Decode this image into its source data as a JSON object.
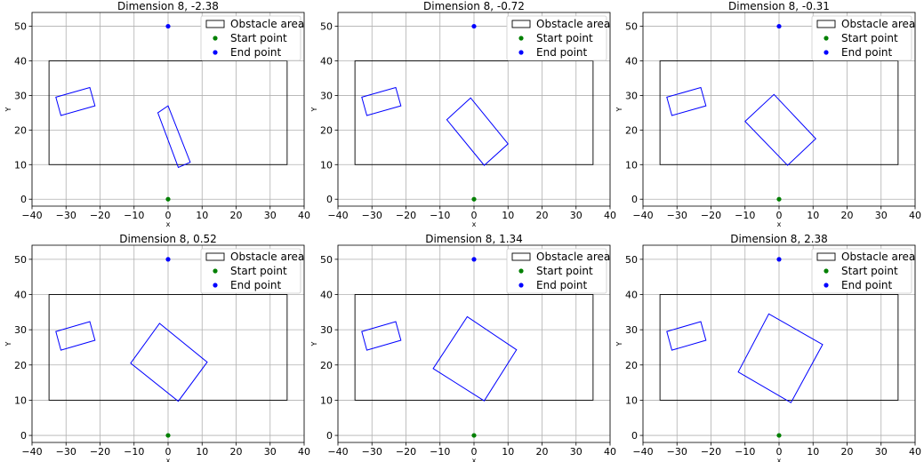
{
  "chart_data": [
    {
      "type": "scatter",
      "title": "Dimension 8, -2.38",
      "xlabel": "x",
      "ylabel": "Y",
      "xlim": [
        -40,
        40
      ],
      "ylim": [
        -2,
        54
      ],
      "xticks": [
        -40,
        -30,
        -20,
        -10,
        0,
        10,
        20,
        30,
        40
      ],
      "yticks": [
        0,
        10,
        20,
        30,
        40,
        50
      ],
      "grid": true,
      "legend": {
        "position": "top-right",
        "entries": [
          "Obstacle area",
          "Start point",
          "End point"
        ]
      },
      "obstacle_area": {
        "x": [
          -35,
          35
        ],
        "y": [
          10,
          40
        ]
      },
      "start_point": [
        0,
        0
      ],
      "end_point": [
        0,
        50
      ],
      "polygons": [
        {
          "name": "small rectangle",
          "points": [
            [
              -33,
              29.5
            ],
            [
              -23,
              32.3
            ],
            [
              -21.5,
              27
            ],
            [
              -31.5,
              24.2
            ]
          ]
        },
        {
          "name": "rotated rectangle",
          "points": [
            [
              -3,
              25
            ],
            [
              0,
              27
            ],
            [
              6.5,
              10.7
            ],
            [
              3,
              9.2
            ]
          ]
        }
      ]
    },
    {
      "type": "scatter",
      "title": "Dimension 8, -0.72",
      "xlabel": "x",
      "ylabel": "Y",
      "xlim": [
        -40,
        40
      ],
      "ylim": [
        -2,
        54
      ],
      "xticks": [
        -40,
        -30,
        -20,
        -10,
        0,
        10,
        20,
        30,
        40
      ],
      "yticks": [
        0,
        10,
        20,
        30,
        40,
        50
      ],
      "grid": true,
      "legend": {
        "position": "top-right",
        "entries": [
          "Obstacle area",
          "Start point",
          "End point"
        ]
      },
      "obstacle_area": {
        "x": [
          -35,
          35
        ],
        "y": [
          10,
          40
        ]
      },
      "start_point": [
        0,
        0
      ],
      "end_point": [
        0,
        50
      ],
      "polygons": [
        {
          "name": "small rectangle",
          "points": [
            [
              -33,
              29.5
            ],
            [
              -23,
              32.3
            ],
            [
              -21.5,
              27
            ],
            [
              -31.5,
              24.2
            ]
          ]
        },
        {
          "name": "rotated rectangle",
          "points": [
            [
              -8,
              23
            ],
            [
              -1,
              29.3
            ],
            [
              10,
              16
            ],
            [
              3,
              9.8
            ]
          ]
        }
      ]
    },
    {
      "type": "scatter",
      "title": "Dimension 8, -0.31",
      "xlabel": "x",
      "ylabel": "Y",
      "xlim": [
        -40,
        40
      ],
      "ylim": [
        -2,
        54
      ],
      "xticks": [
        -40,
        -30,
        -20,
        -10,
        0,
        10,
        20,
        30,
        40
      ],
      "yticks": [
        0,
        10,
        20,
        30,
        40,
        50
      ],
      "grid": true,
      "legend": {
        "position": "top-right",
        "entries": [
          "Obstacle area",
          "Start point",
          "End point"
        ]
      },
      "obstacle_area": {
        "x": [
          -35,
          35
        ],
        "y": [
          10,
          40
        ]
      },
      "start_point": [
        0,
        0
      ],
      "end_point": [
        0,
        50
      ],
      "polygons": [
        {
          "name": "small rectangle",
          "points": [
            [
              -33,
              29.5
            ],
            [
              -23,
              32.3
            ],
            [
              -21.5,
              27
            ],
            [
              -31.5,
              24.2
            ]
          ]
        },
        {
          "name": "rotated rectangle",
          "points": [
            [
              -10,
              22.5
            ],
            [
              -1.5,
              30.3
            ],
            [
              10.8,
              17.5
            ],
            [
              2.5,
              9.8
            ]
          ]
        }
      ]
    },
    {
      "type": "scatter",
      "title": "Dimension 8, 0.52",
      "xlabel": "x",
      "ylabel": "Y",
      "xlim": [
        -40,
        40
      ],
      "ylim": [
        -2,
        54
      ],
      "xticks": [
        -40,
        -30,
        -20,
        -10,
        0,
        10,
        20,
        30,
        40
      ],
      "yticks": [
        0,
        10,
        20,
        30,
        40,
        50
      ],
      "grid": true,
      "legend": {
        "position": "top-right",
        "entries": [
          "Obstacle area",
          "Start point",
          "End point"
        ]
      },
      "obstacle_area": {
        "x": [
          -35,
          35
        ],
        "y": [
          10,
          40
        ]
      },
      "start_point": [
        0,
        0
      ],
      "end_point": [
        0,
        50
      ],
      "polygons": [
        {
          "name": "small rectangle",
          "points": [
            [
              -33,
              29.5
            ],
            [
              -23,
              32.3
            ],
            [
              -21.5,
              27
            ],
            [
              -31.5,
              24.2
            ]
          ]
        },
        {
          "name": "rotated rectangle",
          "points": [
            [
              -11,
              20.5
            ],
            [
              -2.5,
              31.8
            ],
            [
              11.5,
              20.8
            ],
            [
              3,
              9.7
            ]
          ]
        }
      ]
    },
    {
      "type": "scatter",
      "title": "Dimension 8, 1.34",
      "xlabel": "x",
      "ylabel": "Y",
      "xlim": [
        -40,
        40
      ],
      "ylim": [
        -2,
        54
      ],
      "xticks": [
        -40,
        -30,
        -20,
        -10,
        0,
        10,
        20,
        30,
        40
      ],
      "yticks": [
        0,
        10,
        20,
        30,
        40,
        50
      ],
      "grid": true,
      "legend": {
        "position": "top-right",
        "entries": [
          "Obstacle area",
          "Start point",
          "End point"
        ]
      },
      "obstacle_area": {
        "x": [
          -35,
          35
        ],
        "y": [
          10,
          40
        ]
      },
      "start_point": [
        0,
        0
      ],
      "end_point": [
        0,
        50
      ],
      "polygons": [
        {
          "name": "small rectangle",
          "points": [
            [
              -33,
              29.5
            ],
            [
              -23,
              32.3
            ],
            [
              -21.5,
              27
            ],
            [
              -31.5,
              24.2
            ]
          ]
        },
        {
          "name": "rotated rectangle",
          "points": [
            [
              -12,
              19
            ],
            [
              -2,
              33.7
            ],
            [
              12.5,
              24.3
            ],
            [
              3,
              9.8
            ]
          ]
        }
      ]
    },
    {
      "type": "scatter",
      "title": "Dimension 8, 2.38",
      "xlabel": "x",
      "ylabel": "Y",
      "xlim": [
        -40,
        40
      ],
      "ylim": [
        -2,
        54
      ],
      "xticks": [
        -40,
        -30,
        -20,
        -10,
        0,
        10,
        20,
        30,
        40
      ],
      "yticks": [
        0,
        10,
        20,
        30,
        40,
        50
      ],
      "grid": true,
      "legend": {
        "position": "top-right",
        "entries": [
          "Obstacle area",
          "Start point",
          "End point"
        ]
      },
      "obstacle_area": {
        "x": [
          -35,
          35
        ],
        "y": [
          10,
          40
        ]
      },
      "start_point": [
        0,
        0
      ],
      "end_point": [
        0,
        50
      ],
      "polygons": [
        {
          "name": "small rectangle",
          "points": [
            [
              -33,
              29.5
            ],
            [
              -23,
              32.3
            ],
            [
              -21.5,
              27
            ],
            [
              -31.5,
              24.2
            ]
          ]
        },
        {
          "name": "rotated rectangle",
          "points": [
            [
              -12,
              18
            ],
            [
              -3,
              34.5
            ],
            [
              12.8,
              25.8
            ],
            [
              3.5,
              9.3
            ]
          ]
        }
      ]
    }
  ],
  "colors": {
    "obstacle": "#000000",
    "polygon": "#0000ff",
    "start": "#008000",
    "end": "#0000ff",
    "grid": "#b0b0b0"
  }
}
